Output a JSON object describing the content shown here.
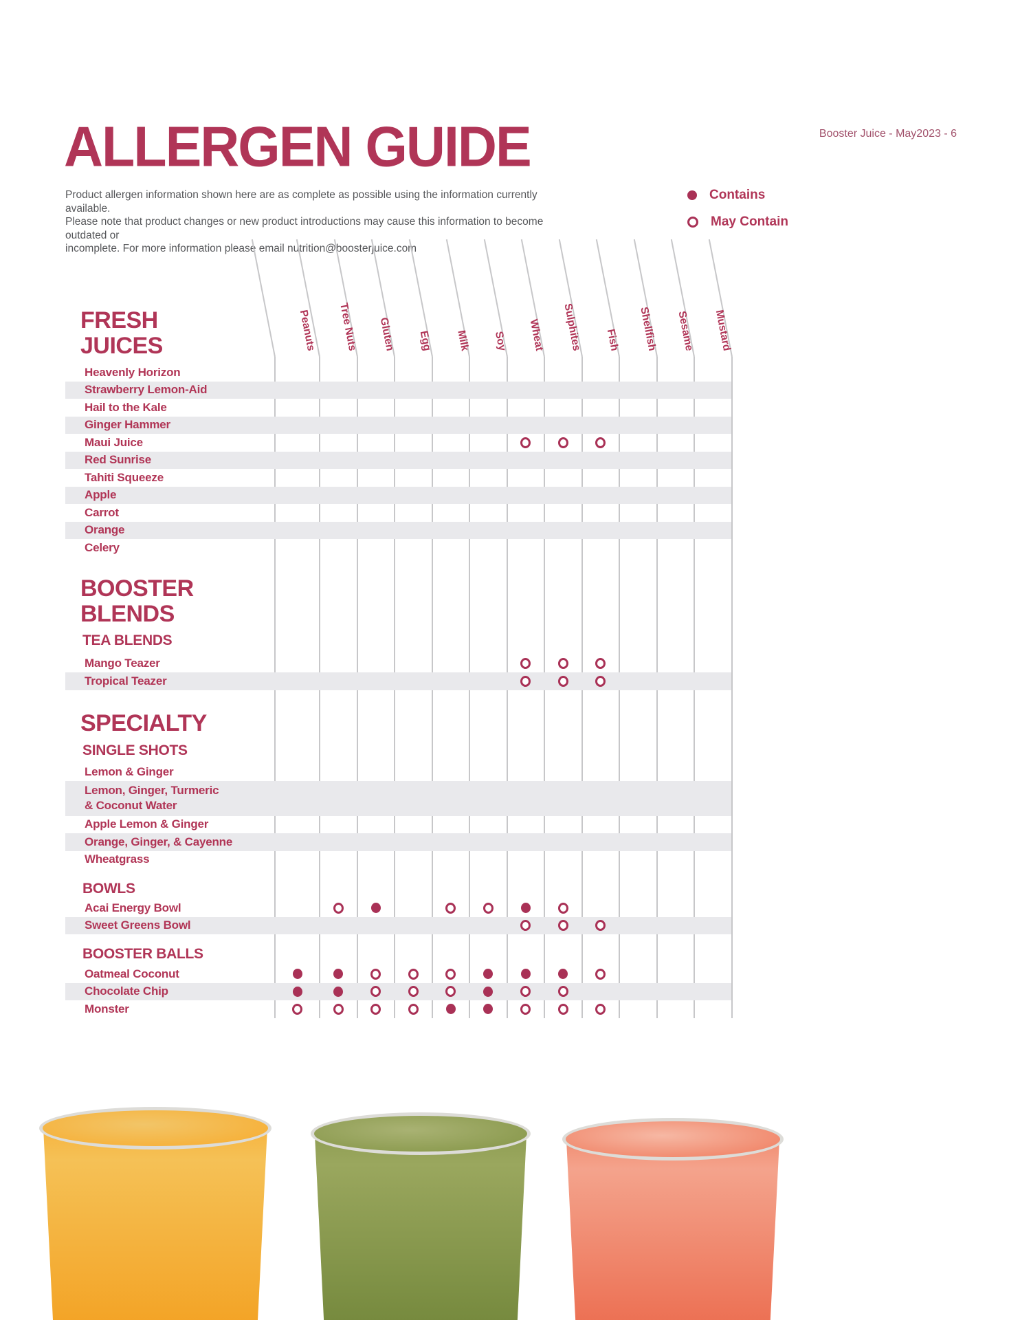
{
  "page": {
    "title": "ALLERGEN GUIDE",
    "page_ref": "Booster Juice - May2023 - 6"
  },
  "intro": {
    "line1": "Product allergen information shown here are as complete as possible using the information currently available.",
    "line2": "Please note that product changes or new product introductions may cause this information to become outdated or",
    "line3": "incomplete. For more information please email  nutrition@boosterjuice.com"
  },
  "legend": {
    "contains_label": "Contains",
    "may_contain_label": "May Contain"
  },
  "colors": {
    "accent": "#b03557",
    "circle": "#a93156",
    "stripe": "#e9e9ec",
    "gridline": "#c7c7c9",
    "intro_text": "#56575a"
  },
  "allergens": [
    "Peanuts",
    "Tree Nuts",
    "Gluten",
    "Egg",
    "Milk",
    "Soy",
    "Wheat",
    "Sulphites",
    "Fish",
    "Shellfish",
    "Sesame",
    "Mustard"
  ],
  "sections": [
    {
      "heading_lines": [
        "FRESH",
        "JUICES"
      ],
      "subheading": null,
      "rows": [
        {
          "name": "Heavenly Horizon",
          "marks": {}
        },
        {
          "name": "Strawberry Lemon-Aid",
          "marks": {}
        },
        {
          "name": "Hail to the Kale",
          "marks": {}
        },
        {
          "name": "Ginger Hammer",
          "marks": {}
        },
        {
          "name": "Maui Juice",
          "marks": {
            "Wheat": "may",
            "Sulphites": "may",
            "Fish": "may"
          }
        },
        {
          "name": "Red Sunrise",
          "marks": {}
        },
        {
          "name": "Tahiti Squeeze",
          "marks": {}
        },
        {
          "name": "Apple",
          "marks": {}
        },
        {
          "name": "Carrot",
          "marks": {}
        },
        {
          "name": "Orange",
          "marks": {}
        },
        {
          "name": "Celery",
          "marks": {}
        }
      ]
    },
    {
      "heading_lines": [
        "BOOSTER",
        "BLENDS"
      ],
      "subheading": "TEA BLENDS",
      "rows": [
        {
          "name": "Mango Teazer",
          "marks": {
            "Wheat": "may",
            "Sulphites": "may",
            "Fish": "may"
          }
        },
        {
          "name": "Tropical Teazer",
          "marks": {
            "Wheat": "may",
            "Sulphites": "may",
            "Fish": "may"
          }
        }
      ]
    },
    {
      "heading_lines": [
        "SPECIALTY"
      ],
      "subheading": "SINGLE SHOTS",
      "rows": [
        {
          "name": "Lemon & Ginger",
          "marks": {}
        },
        {
          "name": "Lemon, Ginger, Turmeric",
          "name_line2": "& Coconut Water",
          "marks": {}
        },
        {
          "name": "Apple Lemon & Ginger",
          "marks": {}
        },
        {
          "name": "Orange, Ginger, & Cayenne",
          "marks": {}
        },
        {
          "name": "Wheatgrass",
          "marks": {}
        }
      ]
    },
    {
      "heading_lines": [],
      "subheading": "BOWLS",
      "rows": [
        {
          "name": "Acai Energy Bowl",
          "marks": {
            "Tree Nuts": "may",
            "Gluten": "contains",
            "Milk": "may",
            "Soy": "may",
            "Wheat": "contains",
            "Sulphites": "may"
          }
        },
        {
          "name": "Sweet Greens Bowl",
          "marks": {
            "Wheat": "may",
            "Sulphites": "may",
            "Fish": "may"
          }
        }
      ]
    },
    {
      "heading_lines": [],
      "subheading": "BOOSTER BALLS",
      "rows": [
        {
          "name": "Oatmeal Coconut",
          "marks": {
            "Peanuts": "contains",
            "Tree Nuts": "contains",
            "Gluten": "may",
            "Egg": "may",
            "Milk": "may",
            "Soy": "contains",
            "Wheat": "contains",
            "Sulphites": "contains",
            "Fish": "may"
          }
        },
        {
          "name": "Chocolate Chip",
          "marks": {
            "Peanuts": "contains",
            "Tree Nuts": "contains",
            "Gluten": "may",
            "Egg": "may",
            "Milk": "may",
            "Soy": "contains",
            "Wheat": "may",
            "Sulphites": "may"
          }
        },
        {
          "name": "Monster",
          "marks": {
            "Peanuts": "may",
            "Tree Nuts": "may",
            "Gluten": "may",
            "Egg": "may",
            "Milk": "contains",
            "Soy": "contains",
            "Wheat": "may",
            "Sulphites": "may",
            "Fish": "may"
          }
        }
      ]
    }
  ],
  "cups": [
    {
      "name": "orange-smoothie-cup",
      "surface": "#f5c156",
      "top": "#f6b23c",
      "bottom": "#f3a325",
      "rim_fill": "#f2c568"
    },
    {
      "name": "green-smoothie-cup",
      "surface": "#9aa75e",
      "top": "#8d9c51",
      "bottom": "#75893d",
      "rim_fill": "#a9b273"
    },
    {
      "name": "pink-smoothie-cup",
      "surface": "#f4a38c",
      "top": "#f18a6e",
      "bottom": "#ec6f52",
      "rim_fill": "#f6b8a4"
    }
  ]
}
